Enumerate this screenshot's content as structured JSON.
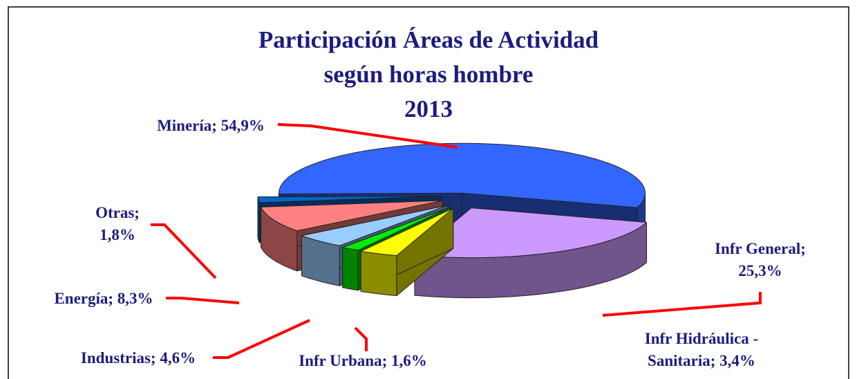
{
  "chart_data": {
    "type": "pie3d",
    "title": [
      "Participación  Áreas de Actividad",
      "según horas hombre",
      "2013"
    ],
    "categories": [
      "Minería",
      "Infr General",
      "Infr Hidráulica - Sanitaria",
      "Infr Urbana",
      "Industrias",
      "Energía",
      "Otras"
    ],
    "values": [
      54.9,
      25.3,
      3.4,
      1.6,
      4.6,
      8.3,
      1.8
    ],
    "value_labels": [
      "Minería; 54,9%",
      "Infr General; 25,3%",
      "Infr Hidráulica - Sanitaria; 3,4%",
      "Infr Urbana; 1,6%",
      "Industrias; 4,6%",
      "Energía; 8,3%",
      "Otras; 1,8%"
    ],
    "colors": [
      "#3366ff",
      "#cc99ff",
      "#ffff00",
      "#00ee00",
      "#99ccff",
      "#ff8080",
      "#0066cc"
    ]
  }
}
